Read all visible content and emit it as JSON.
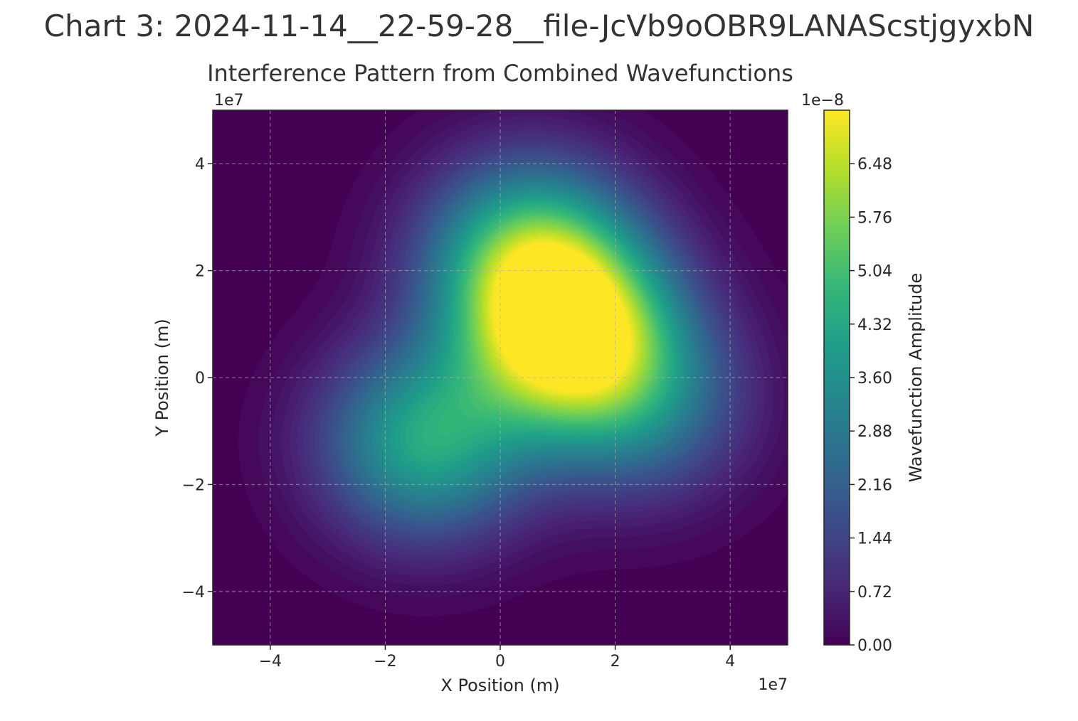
{
  "page": {
    "suptitle": "Chart 3: 2024-11-14__22-59-28__file-JcVb9oOBR9LANAScstjgyxbN"
  },
  "chart_data": {
    "type": "heatmap",
    "subtype": "filled-contour",
    "title": "Interference Pattern from Combined Wavefunctions",
    "xlabel": "X Position (m)",
    "ylabel": "Y Position (m)",
    "x_offset_text": "1e7",
    "y_offset_text": "1e7",
    "xlim": [
      -5,
      5
    ],
    "ylim": [
      -5,
      5
    ],
    "x_scale": 10000000,
    "y_scale": 10000000,
    "xticks": [
      -4,
      -2,
      0,
      2,
      4
    ],
    "yticks": [
      -4,
      -2,
      0,
      2,
      4
    ],
    "xtick_labels": [
      "−4",
      "−2",
      "0",
      "2",
      "4"
    ],
    "ytick_labels": [
      "−4",
      "−2",
      "0",
      "2",
      "4"
    ],
    "grid": true,
    "colormap": "viridis",
    "colorbar": {
      "label": "Wavefunction Amplitude",
      "offset_text": "1e−8",
      "scale": 1e-08,
      "range": [
        0,
        7.2
      ],
      "ticks": [
        0.0,
        0.72,
        1.44,
        2.16,
        2.88,
        3.6,
        4.32,
        5.04,
        5.76,
        6.48
      ],
      "tick_labels": [
        "0.00",
        "0.72",
        "1.44",
        "2.16",
        "2.88",
        "3.60",
        "4.32",
        "5.04",
        "5.76",
        "6.48"
      ],
      "levels": 50
    },
    "peaks": [
      {
        "x": 1.2,
        "y": 0.8,
        "amplitude": 7.0
      },
      {
        "x": -1.3,
        "y": -1.2,
        "amplitude": 4.3
      },
      {
        "x": 0.5,
        "y": 2.3,
        "amplitude": 4.8
      },
      {
        "x": 2.5,
        "y": -0.5,
        "amplitude": 2.5
      }
    ],
    "colors": {
      "background": "#440154",
      "peak": "#fde725",
      "grid": "#b0b0b0"
    }
  }
}
